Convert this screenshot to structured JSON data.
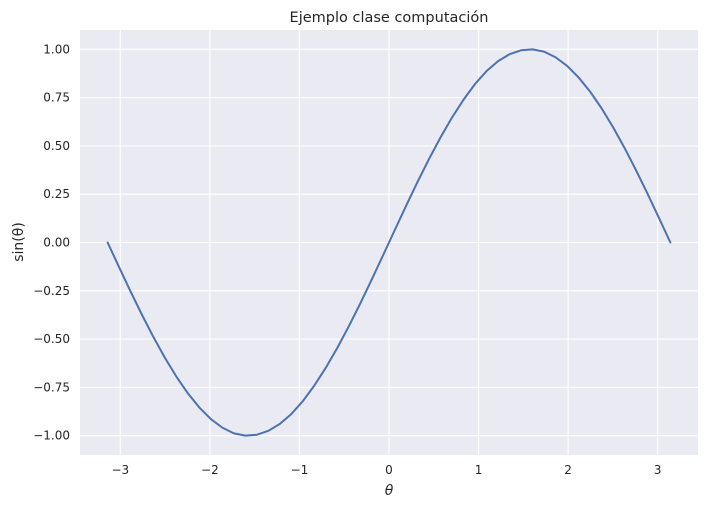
{
  "chart_data": {
    "type": "line",
    "title": "Ejemplo clase computación",
    "xlabel": "θ",
    "ylabel": "sin(θ)",
    "xlim": [
      -3.45,
      3.45
    ],
    "ylim": [
      -1.1,
      1.1
    ],
    "grid": true,
    "x_ticks": [
      -3,
      -2,
      -1,
      0,
      1,
      2,
      3
    ],
    "x_tick_labels": [
      "−3",
      "−2",
      "−1",
      "0",
      "1",
      "2",
      "3"
    ],
    "y_ticks": [
      -1.0,
      -0.75,
      -0.5,
      -0.25,
      0.0,
      0.25,
      0.5,
      0.75,
      1.0
    ],
    "y_tick_labels": [
      "−1.00",
      "−0.75",
      "−0.50",
      "−0.25",
      "0.00",
      "0.25",
      "0.50",
      "0.75",
      "1.00"
    ],
    "colors": {
      "background": "#EAEAF2",
      "grid": "#FFFFFF",
      "line": "#4C72B0",
      "text": "#262626"
    },
    "series": [
      {
        "x": [
          -3.1416,
          -3.0134,
          -2.8851,
          -2.7569,
          -2.6287,
          -2.5005,
          -2.3722,
          -2.244,
          -2.1158,
          -1.9875,
          -1.8593,
          -1.7311,
          -1.6029,
          -1.4746,
          -1.3464,
          -1.2182,
          -1.0899,
          -0.9617,
          -0.8335,
          -0.7053,
          -0.577,
          -0.4488,
          -0.3206,
          -0.1923,
          -0.0641,
          0.0641,
          0.1923,
          0.3206,
          0.4488,
          0.577,
          0.7053,
          0.8335,
          0.9617,
          1.0899,
          1.2182,
          1.3464,
          1.4746,
          1.6029,
          1.7311,
          1.8593,
          1.9875,
          2.1158,
          2.244,
          2.3722,
          2.5005,
          2.6287,
          2.7569,
          2.8851,
          3.0134,
          3.1416
        ],
        "y": [
          0.0,
          -0.1279,
          -0.2537,
          -0.3753,
          -0.4907,
          -0.5981,
          -0.6956,
          -0.7818,
          -0.8551,
          -0.9145,
          -0.959,
          -0.988,
          -0.9995,
          -0.995,
          -0.9749,
          -0.9389,
          -0.8876,
          -0.8211,
          -0.7403,
          -0.6482,
          -0.5455,
          -0.4339,
          -0.3152,
          -0.1911,
          -0.0641,
          0.0641,
          0.1911,
          0.3152,
          0.4339,
          0.5455,
          0.6482,
          0.7403,
          0.8211,
          0.8876,
          0.9389,
          0.9749,
          0.995,
          0.9995,
          0.988,
          0.959,
          0.9145,
          0.8551,
          0.7818,
          0.6956,
          0.5981,
          0.4907,
          0.3753,
          0.2537,
          0.1279,
          0.0
        ]
      }
    ]
  }
}
